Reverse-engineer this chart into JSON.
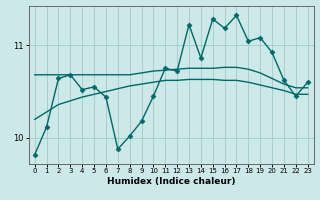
{
  "xlabel": "Humidex (Indice chaleur)",
  "ylabel": "",
  "bg_color": "#cce8e8",
  "grid_color": "#a0c8c8",
  "line_color": "#006868",
  "xlim": [
    -0.5,
    23.5
  ],
  "ylim": [
    9.72,
    11.42
  ],
  "yticks": [
    10,
    11
  ],
  "xticks": [
    0,
    1,
    2,
    3,
    4,
    5,
    6,
    7,
    8,
    9,
    10,
    11,
    12,
    13,
    14,
    15,
    16,
    17,
    18,
    19,
    20,
    21,
    22,
    23
  ],
  "line1_x": [
    0,
    1,
    2,
    3,
    4,
    5,
    6,
    7,
    8,
    9,
    10,
    11,
    12,
    13,
    14,
    15,
    16,
    17,
    18,
    19,
    20,
    21,
    22,
    23
  ],
  "line1_y": [
    9.82,
    10.12,
    10.64,
    10.68,
    10.52,
    10.55,
    10.44,
    9.88,
    10.02,
    10.18,
    10.45,
    10.75,
    10.72,
    11.22,
    10.86,
    11.28,
    11.18,
    11.32,
    11.04,
    11.08,
    10.92,
    10.62,
    10.45,
    10.6
  ],
  "line2_x": [
    0,
    1,
    2,
    3,
    4,
    5,
    6,
    7,
    8,
    9,
    10,
    11,
    12,
    13,
    14,
    15,
    16,
    17,
    18,
    19,
    20,
    21,
    22,
    23
  ],
  "line2_y": [
    10.68,
    10.68,
    10.68,
    10.68,
    10.68,
    10.68,
    10.68,
    10.68,
    10.68,
    10.7,
    10.72,
    10.73,
    10.74,
    10.75,
    10.75,
    10.75,
    10.76,
    10.76,
    10.74,
    10.7,
    10.64,
    10.58,
    10.54,
    10.54
  ],
  "line3_x": [
    0,
    1,
    2,
    3,
    4,
    5,
    6,
    7,
    8,
    9,
    10,
    11,
    12,
    13,
    14,
    15,
    16,
    17,
    18,
    19,
    20,
    21,
    22,
    23
  ],
  "line3_y": [
    10.2,
    10.28,
    10.36,
    10.4,
    10.44,
    10.47,
    10.5,
    10.53,
    10.56,
    10.58,
    10.6,
    10.62,
    10.62,
    10.63,
    10.63,
    10.63,
    10.62,
    10.62,
    10.6,
    10.57,
    10.54,
    10.51,
    10.47,
    10.47
  ],
  "marker": "D",
  "markersize": 2.5,
  "linewidth": 1.0
}
